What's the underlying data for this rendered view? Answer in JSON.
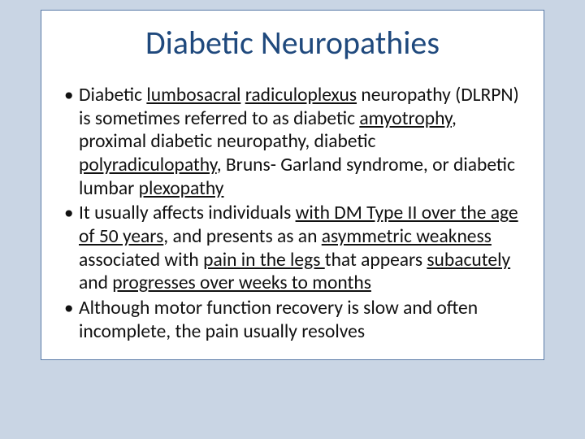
{
  "slide": {
    "background_color": "#c9d5e4",
    "content_bg": "#ffffff",
    "border_color": "#5a7ba8",
    "title": {
      "text": "Diabetic Neuropathies",
      "color": "#1f497d",
      "font_size_pt": 40,
      "font_weight": 400
    },
    "body_font_size_pt": 23.5,
    "body_color": "#111111",
    "bullets": [
      {
        "runs": [
          {
            "text": "Diabetic ",
            "underline": false
          },
          {
            "text": "lumbosacral",
            "underline": true
          },
          {
            "text": " ",
            "underline": false
          },
          {
            "text": "radiculoplexus",
            "underline": true
          },
          {
            "text": " neuropathy (DLRPN) is sometimes referred to as diabetic ",
            "underline": false
          },
          {
            "text": "amyotrophy",
            "underline": true
          },
          {
            "text": ", proximal diabetic neuropathy, diabetic ",
            "underline": false
          },
          {
            "text": "polyradiculopathy",
            "underline": true
          },
          {
            "text": ", Bruns- Garland syndrome, or diabetic lumbar ",
            "underline": false
          },
          {
            "text": "plexopathy",
            "underline": true
          }
        ]
      },
      {
        "runs": [
          {
            "text": "It usually affects individuals ",
            "underline": false
          },
          {
            "text": "with DM Type II over the age of 50 years",
            "underline": true
          },
          {
            "text": ", and presents as an ",
            "underline": false
          },
          {
            "text": "asymmetric weakness ",
            "underline": true
          },
          {
            "text": "associated with ",
            "underline": false
          },
          {
            "text": "pain in the legs ",
            "underline": true
          },
          {
            "text": "that appears ",
            "underline": false
          },
          {
            "text": "subacutely",
            "underline": true
          },
          {
            "text": " and ",
            "underline": false
          },
          {
            "text": "progresses over weeks to months",
            "underline": true
          }
        ]
      },
      {
        "runs": [
          {
            "text": "Although motor function recovery is slow and often incomplete, the pain usually resolves",
            "underline": false
          }
        ]
      }
    ]
  }
}
